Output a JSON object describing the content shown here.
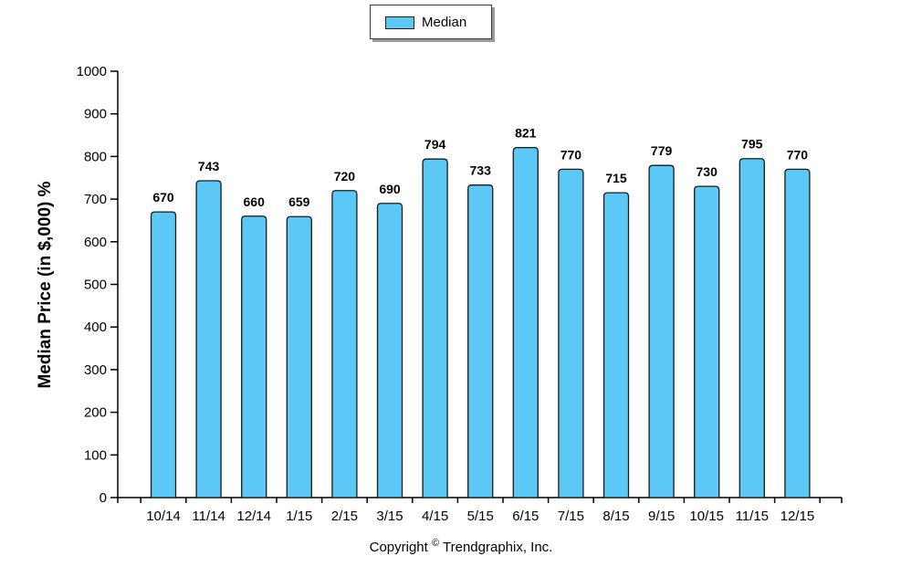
{
  "colors": {
    "bar": "#5bc8f5",
    "bar_stroke": "#1a1a1a",
    "axis": "#000000"
  },
  "legend": {
    "label": "Median"
  },
  "copyright": {
    "prefix": "Copyright",
    "symbol": "©",
    "suffix": "Trendgraphix, Inc."
  },
  "chart_data": {
    "type": "bar",
    "title": "",
    "ylabel": "Median Price (in $,000) %",
    "xlabel": "",
    "ylim": [
      0,
      1000
    ],
    "yticks": [
      0,
      100,
      200,
      300,
      400,
      500,
      600,
      700,
      800,
      900,
      1000
    ],
    "categories": [
      "10/14",
      "11/14",
      "12/14",
      "1/15",
      "2/15",
      "3/15",
      "4/15",
      "5/15",
      "6/15",
      "7/15",
      "8/15",
      "9/15",
      "10/15",
      "11/15",
      "12/15"
    ],
    "series": [
      {
        "name": "Median",
        "values": [
          670,
          743,
          660,
          659,
          720,
          690,
          794,
          733,
          821,
          770,
          715,
          779,
          730,
          795,
          770
        ]
      }
    ],
    "grid": false,
    "legend_position": "top"
  }
}
